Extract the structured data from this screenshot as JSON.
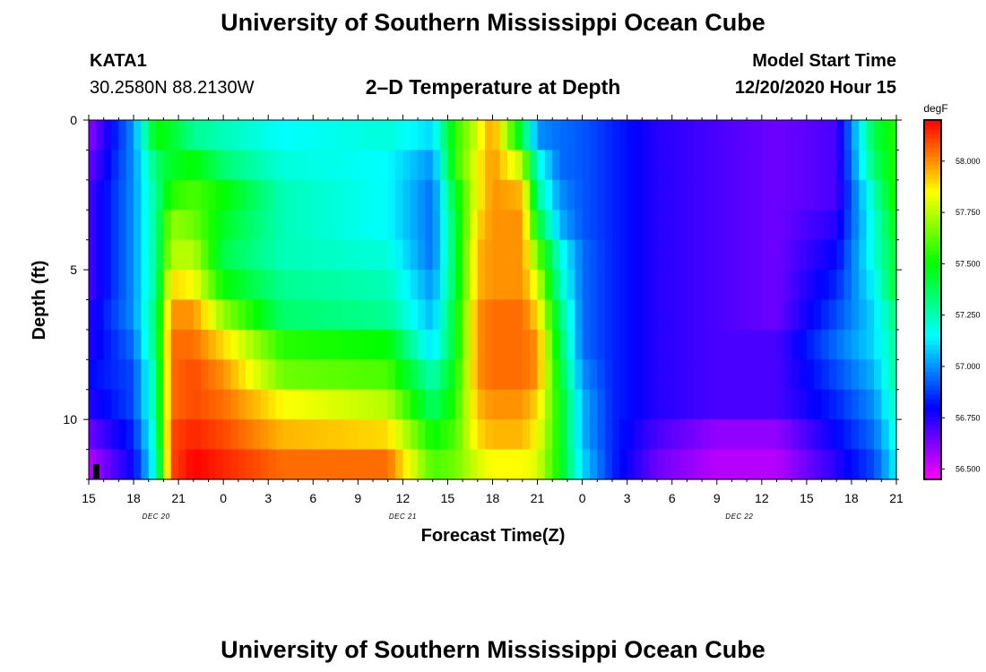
{
  "page": {
    "title_top": "University of Southern Mississippi Ocean Cube",
    "title_bottom": "University of Southern Mississippi Ocean Cube",
    "station_id": "KATA1",
    "station_coords": "30.2580N 88.2130W",
    "plot_title": "2–D Temperature at Depth",
    "start_time_label": "Model Start Time",
    "start_time_value": "12/20/2020 Hour 15"
  },
  "chart_data": {
    "type": "heatmap",
    "title": "2–D Temperature at Depth",
    "xlabel": "Forecast Time(Z)",
    "ylabel": "Depth (ft)",
    "x_hours_range": [
      0,
      54
    ],
    "x_tick_labels": [
      "15",
      "18",
      "21",
      "0",
      "3",
      "6",
      "9",
      "12",
      "15",
      "18",
      "21",
      "0",
      "3",
      "6",
      "9",
      "12",
      "15",
      "18",
      "21"
    ],
    "date_labels": [
      {
        "text": "DEC 20",
        "hour": 4.5
      },
      {
        "text": "DEC 21",
        "hour": 21
      },
      {
        "text": "DEC 22",
        "hour": 43.5
      }
    ],
    "y_range": [
      0,
      12
    ],
    "y_ticks": [
      0,
      5,
      10
    ],
    "depth_levels_ft": [
      0.5,
      1.5,
      2.5,
      3.5,
      4.5,
      5.5,
      6.5,
      7.5,
      8.5,
      9.5,
      10.5,
      11.5
    ],
    "colorbar": {
      "unit": "degF",
      "min": 56.45,
      "max": 58.2,
      "tick_values": [
        56.5,
        56.75,
        57.0,
        57.25,
        57.5,
        57.75,
        58.0
      ],
      "tick_labels": [
        "56.500",
        "56.750",
        "57.000",
        "57.250",
        "57.500",
        "57.750",
        "58.000"
      ]
    },
    "anchor_hours": [
      0,
      3,
      4.5,
      5.5,
      7,
      9,
      13,
      20,
      23,
      24.5,
      26,
      27,
      29,
      30,
      31.5,
      33,
      35,
      38,
      42,
      46,
      50,
      52.5,
      54
    ],
    "values": [
      [
        56.6,
        57.0,
        57.5,
        57.45,
        57.3,
        57.25,
        57.15,
        57.2,
        57.1,
        57.55,
        57.8,
        58.0,
        57.4,
        57.0,
        56.95,
        56.92,
        56.85,
        56.75,
        56.7,
        56.65,
        56.7,
        57.4,
        57.55
      ],
      [
        56.65,
        57.0,
        57.35,
        57.45,
        57.5,
        57.35,
        57.2,
        57.15,
        57.0,
        57.55,
        57.85,
        58.0,
        57.75,
        57.2,
        56.95,
        56.92,
        56.85,
        56.75,
        56.7,
        56.65,
        56.7,
        57.35,
        57.55
      ],
      [
        56.7,
        57.0,
        57.3,
        57.55,
        57.6,
        57.5,
        57.25,
        57.15,
        56.95,
        57.45,
        57.85,
        58.0,
        57.95,
        57.3,
        57.0,
        56.92,
        56.85,
        56.75,
        56.7,
        56.65,
        56.7,
        57.25,
        57.55
      ],
      [
        56.7,
        57.0,
        57.3,
        57.7,
        57.65,
        57.45,
        57.25,
        57.15,
        56.95,
        57.4,
        57.9,
        58.0,
        58.0,
        57.45,
        57.05,
        56.92,
        56.85,
        56.75,
        56.7,
        56.65,
        56.75,
        57.2,
        57.5
      ],
      [
        56.7,
        57.0,
        57.3,
        57.75,
        57.75,
        57.4,
        57.25,
        57.2,
        56.95,
        57.4,
        57.95,
        58.0,
        58.0,
        57.65,
        57.2,
        56.95,
        56.85,
        56.75,
        56.7,
        56.65,
        56.8,
        57.2,
        57.45
      ],
      [
        56.7,
        57.0,
        57.3,
        57.9,
        57.85,
        57.5,
        57.3,
        57.25,
        57.0,
        57.4,
        57.95,
        58.0,
        58.0,
        57.8,
        57.25,
        56.95,
        56.85,
        56.75,
        56.7,
        56.65,
        56.85,
        57.15,
        57.45
      ],
      [
        56.75,
        57.0,
        57.35,
        58.0,
        58.0,
        57.7,
        57.35,
        57.3,
        57.05,
        57.45,
        58.0,
        58.05,
        58.05,
        57.9,
        57.35,
        56.95,
        56.85,
        56.75,
        56.7,
        56.65,
        56.9,
        57.1,
        57.35
      ],
      [
        56.75,
        56.95,
        57.35,
        58.05,
        58.05,
        57.9,
        57.55,
        57.5,
        57.1,
        57.45,
        58.0,
        58.05,
        58.05,
        58.0,
        57.4,
        56.95,
        56.85,
        56.75,
        56.7,
        56.7,
        56.95,
        57.1,
        57.3
      ],
      [
        56.8,
        56.9,
        57.3,
        58.05,
        58.1,
        58.0,
        57.65,
        57.6,
        57.25,
        57.5,
        58.0,
        58.05,
        58.05,
        58.0,
        57.45,
        57.0,
        56.85,
        56.75,
        56.7,
        56.7,
        56.9,
        57.05,
        57.3
      ],
      [
        56.75,
        56.9,
        57.3,
        58.05,
        58.1,
        58.05,
        57.85,
        57.75,
        57.35,
        57.55,
        57.95,
        58.0,
        58.0,
        57.9,
        57.5,
        57.05,
        56.85,
        56.75,
        56.7,
        56.7,
        56.85,
        57.0,
        57.25
      ],
      [
        56.65,
        56.85,
        57.25,
        58.1,
        58.15,
        58.1,
        57.95,
        57.9,
        57.5,
        57.6,
        57.9,
        57.95,
        57.95,
        57.85,
        57.5,
        57.05,
        56.85,
        56.7,
        56.6,
        56.6,
        56.8,
        56.95,
        57.2
      ],
      [
        56.55,
        56.8,
        57.2,
        58.1,
        58.2,
        58.15,
        58.05,
        58.05,
        57.6,
        57.65,
        57.8,
        57.85,
        57.85,
        57.8,
        57.5,
        57.1,
        56.85,
        56.65,
        56.55,
        56.55,
        56.75,
        56.9,
        57.15
      ]
    ]
  }
}
